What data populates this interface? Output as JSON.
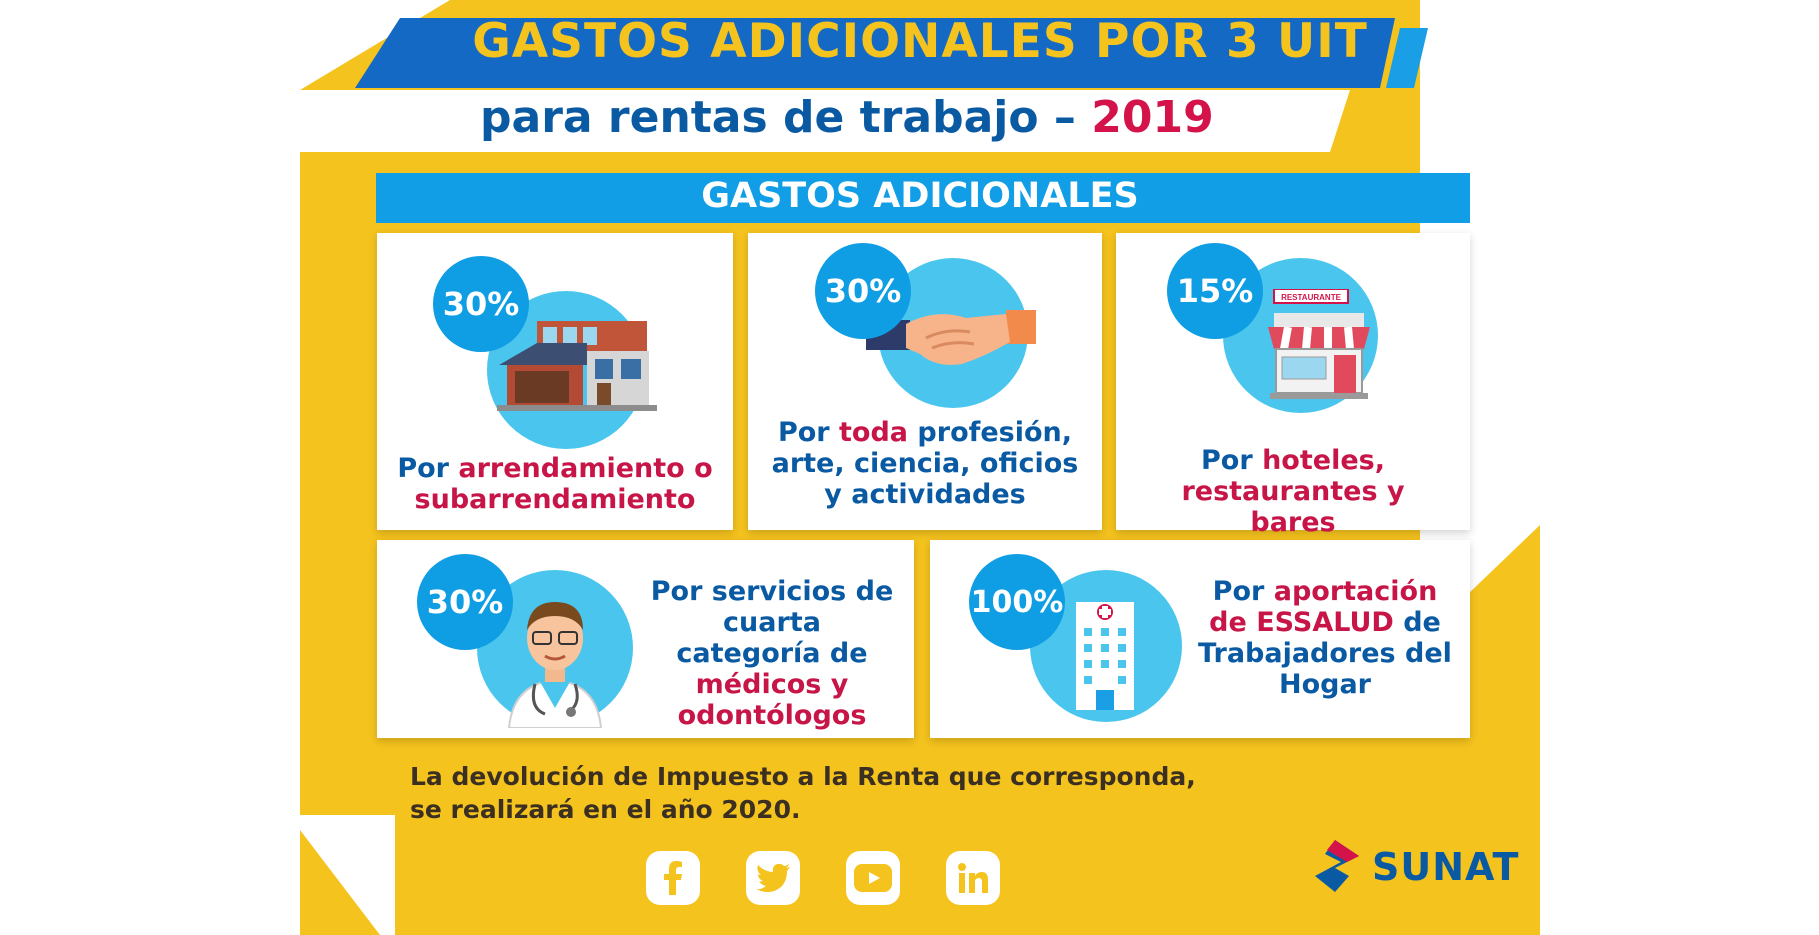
{
  "header": {
    "title": "GASTOS ADICIONALES POR 3 UIT",
    "subtitle": "para rentas de trabajo – ",
    "year": "2019"
  },
  "section": {
    "title": "GASTOS ADICIONALES"
  },
  "cards": [
    {
      "percent": "30%",
      "pre": "Por ",
      "highlight": "arrendamiento o subarrendamiento",
      "post": "",
      "icon": "house-icon"
    },
    {
      "percent": "30%",
      "pre": "Por ",
      "highlight": "toda",
      "post": " profesión, arte, ciencia, oficios y actividades",
      "icon": "handshake-icon"
    },
    {
      "percent": "15%",
      "pre": "Por ",
      "highlight": "hoteles, restaurantes y bares",
      "post": "",
      "icon": "restaurant-icon",
      "sign": "RESTAURANTE"
    },
    {
      "percent": "30%",
      "pre": "Por servicios de cuarta categoría de ",
      "highlight": "médicos y odontólogos",
      "post": "",
      "icon": "doctor-icon"
    },
    {
      "percent": "100%",
      "pre": "Por ",
      "highlight": "aportación de ESSALUD",
      "post": " de Trabajadores del Hogar",
      "icon": "hospital-icon"
    }
  ],
  "footer": {
    "note_line1": "La devolución de Impuesto a la Renta que corresponda,",
    "note_line2": "se realizará en el año 2020.",
    "social": [
      "facebook-icon",
      "twitter-icon",
      "youtube-icon",
      "linkedin-icon"
    ],
    "brand": "SUNAT"
  },
  "colors": {
    "yellow": "#f5c31e",
    "blue": "#0a5aa3",
    "cyan": "#0f9de4",
    "light_cyan": "#4ac6ee",
    "magenta": "#c81548",
    "red": "#d31349"
  }
}
